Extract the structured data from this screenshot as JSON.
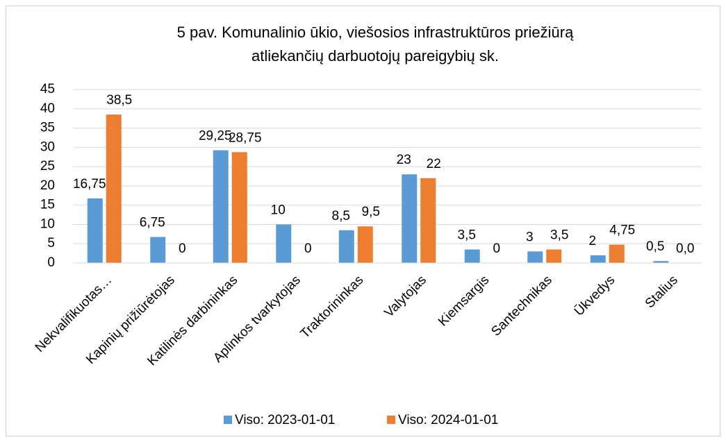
{
  "chart_data": {
    "type": "bar",
    "title": [
      "5 pav. Komunalinio ūkio, viešosios infrastruktūros priežiūrą",
      "atliekančių darbuotojų pareigybių sk."
    ],
    "categories": [
      "Nekvalifikuotas…",
      "Kapinių prižiūrėtojas",
      "Katilinės darbininkas",
      "Aplinkos tvarkytojas",
      "Traktorininkas",
      "Valytojas",
      "Kiemsargis",
      "Santechnikas",
      "Ūkvedys",
      "Stalius"
    ],
    "series": [
      {
        "name": "Viso: 2023-01-01",
        "color": "#5b9bd5",
        "values": [
          16.75,
          6.75,
          29.25,
          10,
          8.5,
          23,
          3.5,
          3,
          2,
          0.5
        ],
        "value_labels": [
          "16,75",
          "6,75",
          "29,25",
          "10",
          "8,5",
          "23",
          "3,5",
          "3",
          "2",
          "0,5"
        ]
      },
      {
        "name": "Viso: 2024-01-01",
        "color": "#ed7d31",
        "values": [
          38.5,
          0,
          28.75,
          0,
          9.5,
          22,
          0,
          3.5,
          4.75,
          0
        ],
        "value_labels": [
          "38,5",
          "0",
          "28,75",
          "0",
          "9,5",
          "22",
          "0",
          "3,5",
          "4,75",
          "0,0"
        ]
      }
    ],
    "ylim": [
      0,
      45
    ],
    "yticks": [
      0,
      5,
      10,
      15,
      20,
      25,
      30,
      35,
      40,
      45
    ],
    "grid": true,
    "legend": "bottom"
  }
}
